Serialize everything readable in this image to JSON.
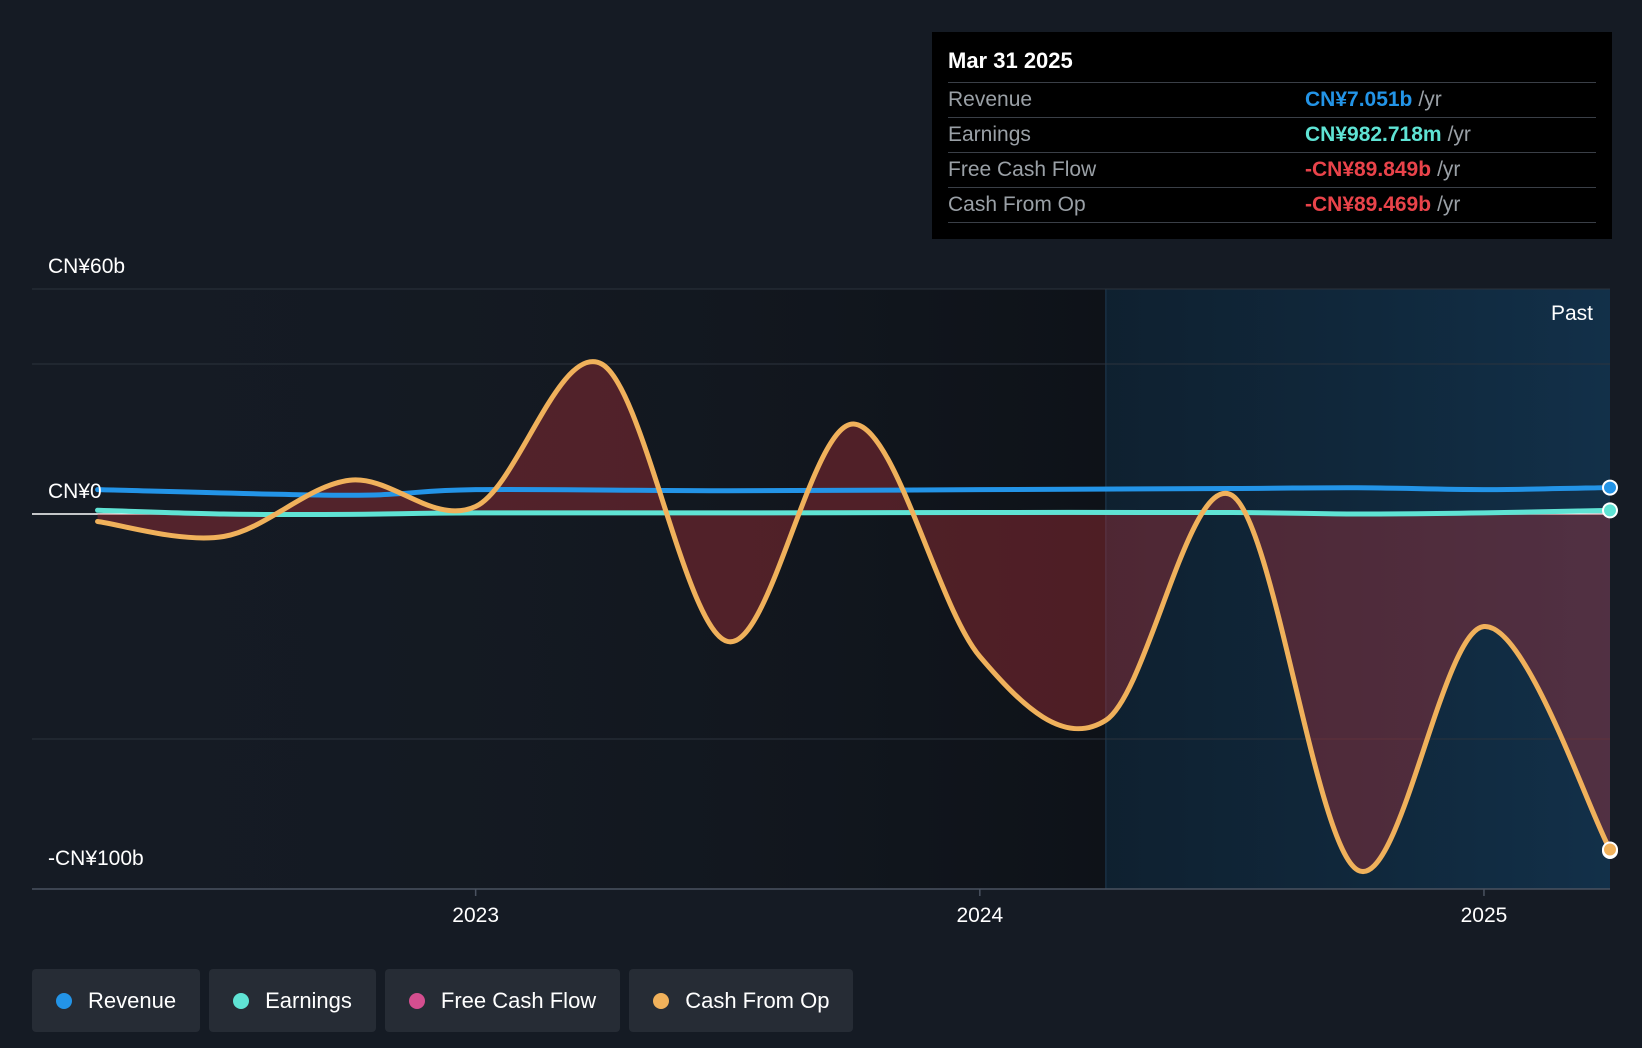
{
  "chart_data": {
    "type": "area",
    "ylim": [
      -100,
      60
    ],
    "y_ticks": [
      {
        "value": 60,
        "label": "CN¥60b"
      },
      {
        "value": 0,
        "label": "CN¥0"
      },
      {
        "value": -100,
        "label": "-CN¥100b"
      }
    ],
    "x_ticks": [
      {
        "value": 2023.0,
        "label": "2023"
      },
      {
        "value": 2024.0,
        "label": "2024"
      },
      {
        "value": 2025.0,
        "label": "2025"
      }
    ],
    "xlim": [
      2022.12,
      2025.25
    ],
    "past_start": 2024.25,
    "past_label": "Past",
    "grid": true,
    "series": [
      {
        "name": "Revenue",
        "color": "#2394e7",
        "x": [
          2022.25,
          2022.75,
          2023.0,
          2023.5,
          2024.0,
          2024.5,
          2024.75,
          2025.0,
          2025.25
        ],
        "y": [
          6.5,
          5.0,
          6.5,
          6.2,
          6.5,
          6.8,
          7.0,
          6.5,
          7.05
        ]
      },
      {
        "name": "Earnings",
        "color": "#5fe3d4",
        "x": [
          2022.25,
          2022.5,
          2022.75,
          2023.0,
          2023.5,
          2024.0,
          2024.5,
          2024.75,
          2025.0,
          2025.25
        ],
        "y": [
          1.0,
          0.0,
          -0.1,
          0.3,
          0.3,
          0.4,
          0.4,
          0.0,
          0.3,
          0.98
        ]
      },
      {
        "name": "Free Cash Flow",
        "color": "#d44e8f",
        "x": [
          2022.25,
          2022.5,
          2022.75,
          2023.0,
          2023.25,
          2023.5,
          2023.75,
          2024.0,
          2024.25,
          2024.5,
          2024.75,
          2025.0,
          2025.25
        ],
        "y": [
          -2.0,
          -6.0,
          9.0,
          2.0,
          40.0,
          -34.0,
          24.0,
          -38.0,
          -55.0,
          5.0,
          -95.0,
          -30.0,
          -89.85
        ]
      },
      {
        "name": "Cash From Op",
        "color": "#f0b15b",
        "x": [
          2022.25,
          2022.5,
          2022.75,
          2023.0,
          2023.25,
          2023.5,
          2023.75,
          2024.0,
          2024.25,
          2024.5,
          2024.75,
          2025.0,
          2025.25
        ],
        "y": [
          -2.0,
          -6.0,
          9.0,
          2.0,
          40.0,
          -34.0,
          24.0,
          -38.0,
          -55.0,
          5.0,
          -95.0,
          -30.0,
          -89.47
        ]
      }
    ]
  },
  "tooltip": {
    "date": "Mar 31 2025",
    "rows": [
      {
        "label": "Revenue",
        "value": "CN¥7.051b",
        "unit": "/yr",
        "color": "#2394e7"
      },
      {
        "label": "Earnings",
        "value": "CN¥982.718m",
        "unit": "/yr",
        "color": "#5fe3d4"
      },
      {
        "label": "Free Cash Flow",
        "value": "-CN¥89.849b",
        "unit": "/yr",
        "color": "#e9434a"
      },
      {
        "label": "Cash From Op",
        "value": "-CN¥89.469b",
        "unit": "/yr",
        "color": "#e9434a"
      }
    ]
  },
  "legend": [
    {
      "label": "Revenue",
      "color": "#2394e7"
    },
    {
      "label": "Earnings",
      "color": "#5fe3d4"
    },
    {
      "label": "Free Cash Flow",
      "color": "#d44e8f"
    },
    {
      "label": "Cash From Op",
      "color": "#f0b15b"
    }
  ]
}
